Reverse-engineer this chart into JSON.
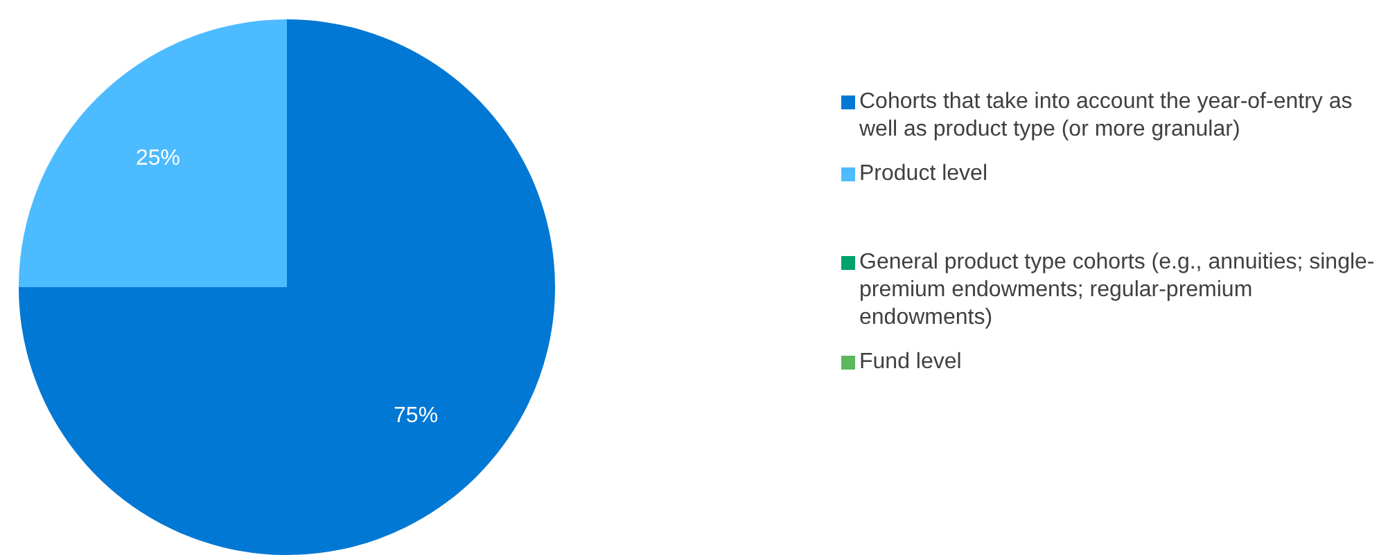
{
  "chart_data": {
    "type": "pie",
    "categories": [
      "Cohorts that take into account the year-of-entry as well as product type (or more granular)",
      "Product level",
      "General product type cohorts (e.g., annuities; single-premium endowments; regular-premium endowments)",
      "Fund level"
    ],
    "values": [
      75,
      25,
      0,
      0
    ],
    "colors": [
      "#0078d4",
      "#4dbbff",
      "#00a36c",
      "#5cb85c"
    ],
    "value_labels": [
      "75%",
      "25%",
      null,
      null
    ],
    "legend": "right"
  }
}
